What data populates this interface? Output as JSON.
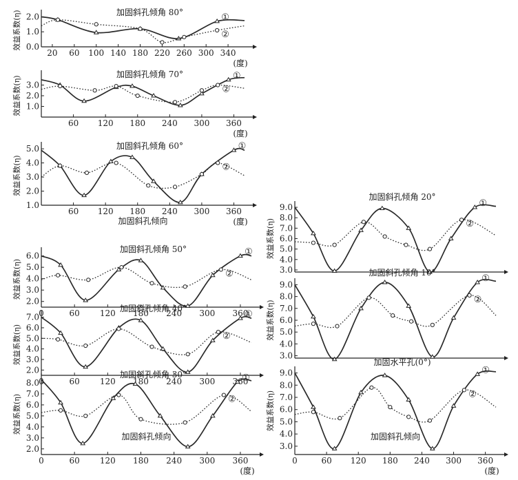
{
  "common": {
    "ylabel": "效益系数(η)",
    "xunit": "(度)",
    "xlabel": "加固斜孔倾向",
    "series_markers": [
      "①",
      "②"
    ]
  },
  "chart_data": [
    {
      "type": "line",
      "title": "加固斜孔倾角 80°",
      "xlabel": "",
      "ylabel": "效益系数(η)",
      "xlim": [
        0,
        370
      ],
      "ylim": [
        0,
        2.2
      ],
      "xticks": [
        20,
        60,
        100,
        140,
        180,
        220,
        260,
        300,
        340
      ],
      "yticks": [
        0,
        1.0,
        2.0
      ],
      "series": [
        {
          "name": "①",
          "x": [
            0,
            30,
            100,
            180,
            250,
            320,
            370
          ],
          "y": [
            2.0,
            1.8,
            0.95,
            1.2,
            0.55,
            1.7,
            1.75
          ]
        },
        {
          "name": "②",
          "x": [
            0,
            30,
            100,
            180,
            220,
            260,
            320,
            370
          ],
          "y": [
            1.4,
            1.8,
            1.5,
            1.2,
            0.3,
            0.65,
            1.1,
            1.4
          ]
        }
      ]
    },
    {
      "type": "line",
      "title": "加固斜孔倾角 70°",
      "xlabel": "",
      "ylabel": "效益系数(η)",
      "xlim": [
        0,
        380
      ],
      "ylim": [
        0,
        4.0
      ],
      "xticks": [
        60,
        120,
        180,
        240,
        300,
        360
      ],
      "yticks": [
        1.0,
        2.0,
        3.0
      ],
      "series": [
        {
          "name": "①",
          "x": [
            0,
            35,
            80,
            140,
            170,
            210,
            260,
            300,
            350,
            380
          ],
          "y": [
            3.5,
            3.0,
            1.5,
            2.8,
            2.9,
            2.0,
            1.1,
            2.2,
            3.5,
            3.7
          ]
        },
        {
          "name": "②",
          "x": [
            0,
            35,
            100,
            140,
            180,
            250,
            300,
            330,
            380
          ],
          "y": [
            2.6,
            2.9,
            2.5,
            2.9,
            2.0,
            1.4,
            2.5,
            3.0,
            2.7
          ]
        }
      ]
    },
    {
      "type": "line",
      "title": "加固斜孔倾角 60°",
      "xlabel": "加固斜孔倾向",
      "ylabel": "效益系数(η)",
      "xlim": [
        0,
        380
      ],
      "ylim": [
        1.0,
        5.2
      ],
      "xticks": [
        60,
        120,
        180,
        240,
        300,
        360
      ],
      "yticks": [
        1.0,
        2.0,
        3.0,
        4.0,
        5.0
      ],
      "series": [
        {
          "name": "①",
          "x": [
            0,
            35,
            80,
            130,
            170,
            210,
            260,
            300,
            360,
            380
          ],
          "y": [
            4.9,
            3.8,
            1.7,
            4.1,
            4.4,
            2.7,
            1.2,
            3.2,
            4.9,
            4.9
          ]
        },
        {
          "name": "②",
          "x": [
            0,
            35,
            85,
            140,
            200,
            250,
            300,
            330,
            380
          ],
          "y": [
            3.0,
            3.8,
            3.3,
            4.0,
            2.4,
            2.3,
            3.2,
            4.0,
            3.1
          ]
        }
      ]
    },
    {
      "type": "line",
      "title": "加固斜孔倾角 50°",
      "xlabel": "",
      "ylabel": "效益系数(η)",
      "xlim": [
        0,
        380
      ],
      "ylim": [
        1.5,
        6.4
      ],
      "xticks": [
        0,
        60,
        120,
        180,
        240,
        300,
        360
      ],
      "yticks": [
        2.0,
        3.0,
        4.0,
        5.0,
        6.0
      ],
      "series": [
        {
          "name": "①",
          "x": [
            0,
            35,
            80,
            140,
            180,
            220,
            265,
            310,
            360,
            380
          ],
          "y": [
            6.0,
            5.2,
            2.1,
            4.8,
            5.6,
            3.2,
            1.6,
            4.3,
            6.0,
            6.0
          ]
        },
        {
          "name": "②",
          "x": [
            0,
            30,
            85,
            145,
            200,
            260,
            325,
            380
          ],
          "y": [
            3.9,
            4.3,
            3.9,
            5.0,
            3.6,
            3.3,
            4.8,
            3.9
          ]
        }
      ]
    },
    {
      "type": "line",
      "title": "加固斜孔倾角 40°",
      "xlabel": "",
      "ylabel": "效益系数(η)",
      "xlim": [
        0,
        380
      ],
      "ylim": [
        1.5,
        7.3
      ],
      "xticks": [
        0,
        60,
        120,
        180,
        240,
        300,
        360
      ],
      "yticks": [
        2.0,
        3.0,
        4.0,
        5.0,
        6.0,
        7.0
      ],
      "series": [
        {
          "name": "①",
          "x": [
            0,
            35,
            80,
            140,
            180,
            220,
            265,
            310,
            360,
            380
          ],
          "y": [
            7.0,
            5.5,
            2.3,
            6.0,
            6.7,
            4.0,
            1.8,
            4.8,
            6.9,
            6.9
          ]
        },
        {
          "name": "②",
          "x": [
            0,
            30,
            80,
            140,
            200,
            265,
            320,
            380
          ],
          "y": [
            5.0,
            4.9,
            4.3,
            5.9,
            4.2,
            3.5,
            5.6,
            4.6
          ]
        }
      ]
    },
    {
      "type": "line",
      "title": "加固斜孔倾角 30°",
      "xlabel": "加固斜孔倾向",
      "ylabel": "效益系数(η)",
      "xlim": [
        0,
        380
      ],
      "ylim": [
        1.8,
        8.5
      ],
      "xticks": [
        0,
        60,
        120,
        180,
        240,
        300,
        360
      ],
      "yticks": [
        2.0,
        3.0,
        4.0,
        5.0,
        6.0,
        7.0,
        8.0
      ],
      "series": [
        {
          "name": "①",
          "x": [
            0,
            35,
            75,
            130,
            170,
            215,
            265,
            310,
            355,
            380
          ],
          "y": [
            8.3,
            6.2,
            2.5,
            6.6,
            7.9,
            5.0,
            2.2,
            5.0,
            8.1,
            8.2
          ]
        },
        {
          "name": "②",
          "x": [
            0,
            35,
            80,
            140,
            180,
            260,
            330,
            380
          ],
          "y": [
            5.3,
            5.5,
            5.0,
            6.9,
            4.7,
            4.4,
            6.9,
            5.4
          ]
        }
      ]
    },
    {
      "type": "line",
      "title": "加固斜孔倾角 20°",
      "xlabel": "",
      "ylabel": "效益系数(η)",
      "xlim": [
        0,
        380
      ],
      "ylim": [
        2.8,
        9.2
      ],
      "xticks": [],
      "yticks": [
        3.0,
        4.0,
        5.0,
        6.0,
        7.0,
        8.0,
        9.0
      ],
      "series": [
        {
          "name": "①",
          "x": [
            0,
            35,
            75,
            125,
            165,
            215,
            255,
            295,
            340,
            380
          ],
          "y": [
            9.0,
            6.5,
            2.9,
            6.8,
            8.9,
            7.0,
            2.8,
            6.0,
            9.0,
            9.1
          ]
        },
        {
          "name": "②",
          "x": [
            0,
            35,
            75,
            130,
            170,
            210,
            255,
            315,
            380
          ],
          "y": [
            5.7,
            5.6,
            5.4,
            7.6,
            6.2,
            5.4,
            5.0,
            7.8,
            6.3
          ]
        }
      ]
    },
    {
      "type": "line",
      "title": "加固斜孔倾角 10°",
      "xlabel": "",
      "ylabel": "效益系数(η)",
      "xlim": [
        0,
        380
      ],
      "ylim": [
        2.8,
        9.2
      ],
      "xticks": [],
      "yticks": [
        3.0,
        4.0,
        5.0,
        6.0,
        7.0,
        8.0,
        9.0
      ],
      "series": [
        {
          "name": "①",
          "x": [
            0,
            35,
            75,
            125,
            170,
            215,
            260,
            300,
            345,
            380
          ],
          "y": [
            9.0,
            6.3,
            2.7,
            7.0,
            9.2,
            7.2,
            2.9,
            6.2,
            9.2,
            9.3
          ]
        },
        {
          "name": "②",
          "x": [
            0,
            35,
            80,
            140,
            185,
            220,
            260,
            330,
            380
          ],
          "y": [
            5.5,
            5.7,
            5.5,
            7.9,
            6.4,
            5.9,
            5.6,
            8.1,
            6.4
          ]
        }
      ]
    },
    {
      "type": "line",
      "title": "加固水平孔(0°)",
      "xlabel": "加固斜孔倾向",
      "ylabel": "效益系数(η)",
      "xlim": [
        0,
        380
      ],
      "ylim": [
        2.6,
        9.2
      ],
      "xticks": [
        0,
        60,
        120,
        180,
        240,
        300,
        360
      ],
      "yticks": [
        3.0,
        4.0,
        5.0,
        6.0,
        7.0,
        8.0,
        9.0
      ],
      "series": [
        {
          "name": "①",
          "x": [
            0,
            35,
            75,
            125,
            170,
            215,
            260,
            300,
            345,
            380
          ],
          "y": [
            9.0,
            6.2,
            2.8,
            7.4,
            8.8,
            6.8,
            2.8,
            6.3,
            8.9,
            9.1
          ]
        },
        {
          "name": "②",
          "x": [
            0,
            35,
            85,
            145,
            180,
            215,
            255,
            320,
            380
          ],
          "y": [
            5.6,
            5.8,
            5.3,
            7.8,
            6.2,
            5.4,
            5.1,
            7.6,
            6.2
          ]
        }
      ]
    }
  ]
}
